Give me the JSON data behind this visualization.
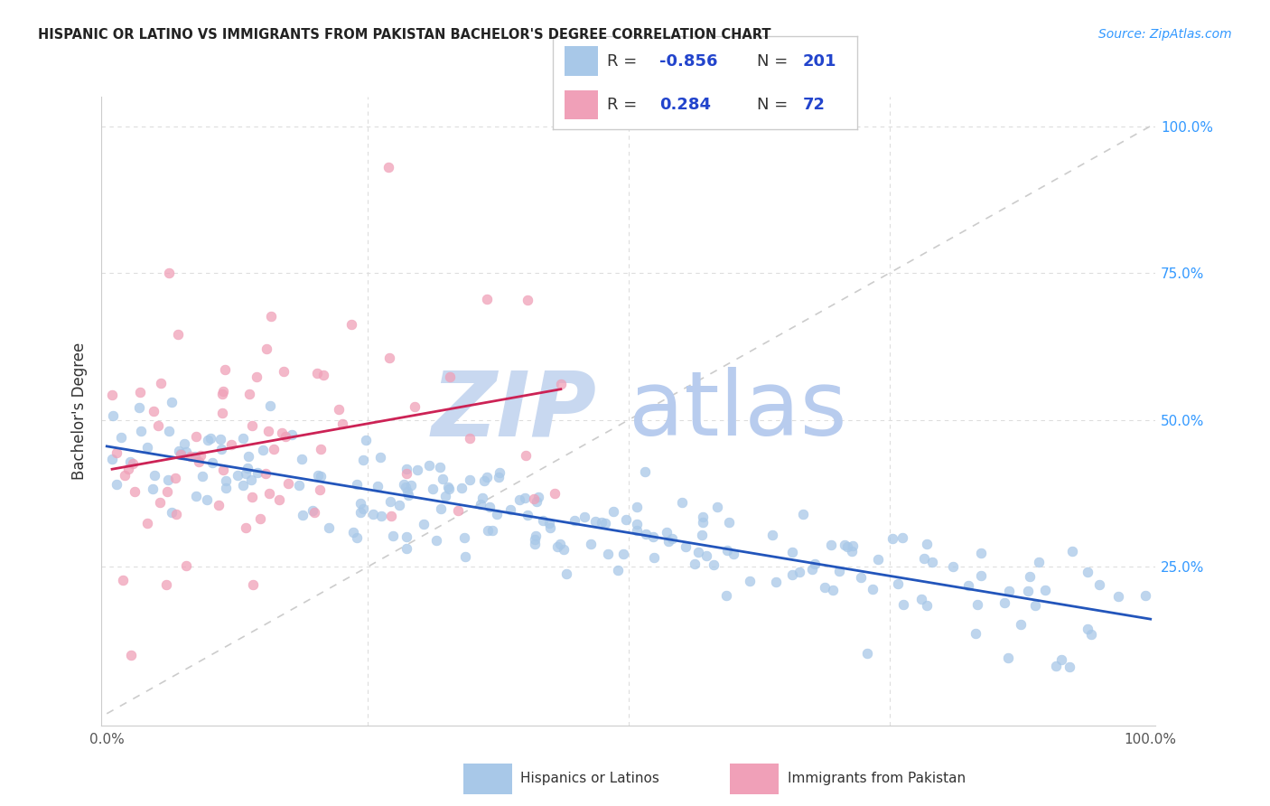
{
  "title": "HISPANIC OR LATINO VS IMMIGRANTS FROM PAKISTAN BACHELOR'S DEGREE CORRELATION CHART",
  "source": "Source: ZipAtlas.com",
  "ylabel": "Bachelor's Degree",
  "blue_R": -0.856,
  "blue_N": 201,
  "pink_R": 0.284,
  "pink_N": 72,
  "blue_color": "#a8c8e8",
  "pink_color": "#f0a0b8",
  "blue_line_color": "#2255bb",
  "pink_line_color": "#cc2255",
  "dashed_line_color": "#cccccc",
  "watermark_zip": "ZIP",
  "watermark_atlas": "atlas",
  "watermark_color": "#c8d8f0",
  "background_color": "#ffffff",
  "grid_color": "#dddddd",
  "right_tick_color": "#3399ff",
  "title_color": "#222222",
  "source_color": "#3399ff",
  "legend_box_color": "#e8e8f8",
  "marker_size": 60,
  "marker_alpha": 0.75,
  "line_width": 2.0
}
